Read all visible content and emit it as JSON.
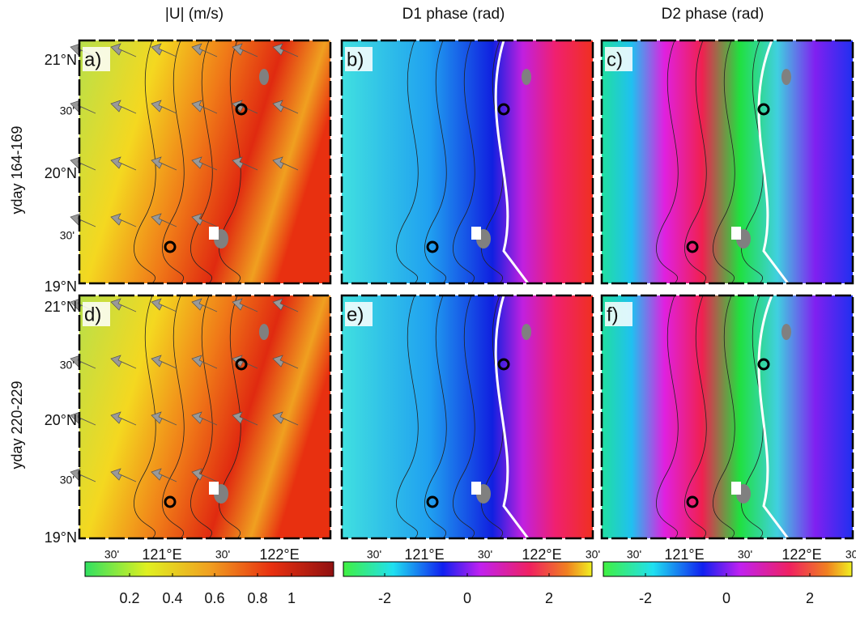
{
  "columns": [
    "|U| (m/s)",
    "D1 phase (rad)",
    "D2 phase (rad)"
  ],
  "rows": [
    "yday 164-169",
    "yday 220-229"
  ],
  "panels": [
    "a)",
    "b)",
    "c)",
    "d)",
    "e)",
    "f)"
  ],
  "lat_labels": [
    "21°N",
    "30'",
    "20°N",
    "30'",
    "19°N"
  ],
  "lon_labels": [
    "30'",
    "121°E",
    "30'",
    "122°E",
    "30'"
  ],
  "colorbars": [
    {
      "ticks": [
        "0.2",
        "0.4",
        "0.6",
        "0.8",
        "1"
      ]
    },
    {
      "ticks": [
        "-2",
        "0",
        "2"
      ]
    },
    {
      "ticks": [
        "-2",
        "0",
        "2"
      ]
    }
  ]
}
